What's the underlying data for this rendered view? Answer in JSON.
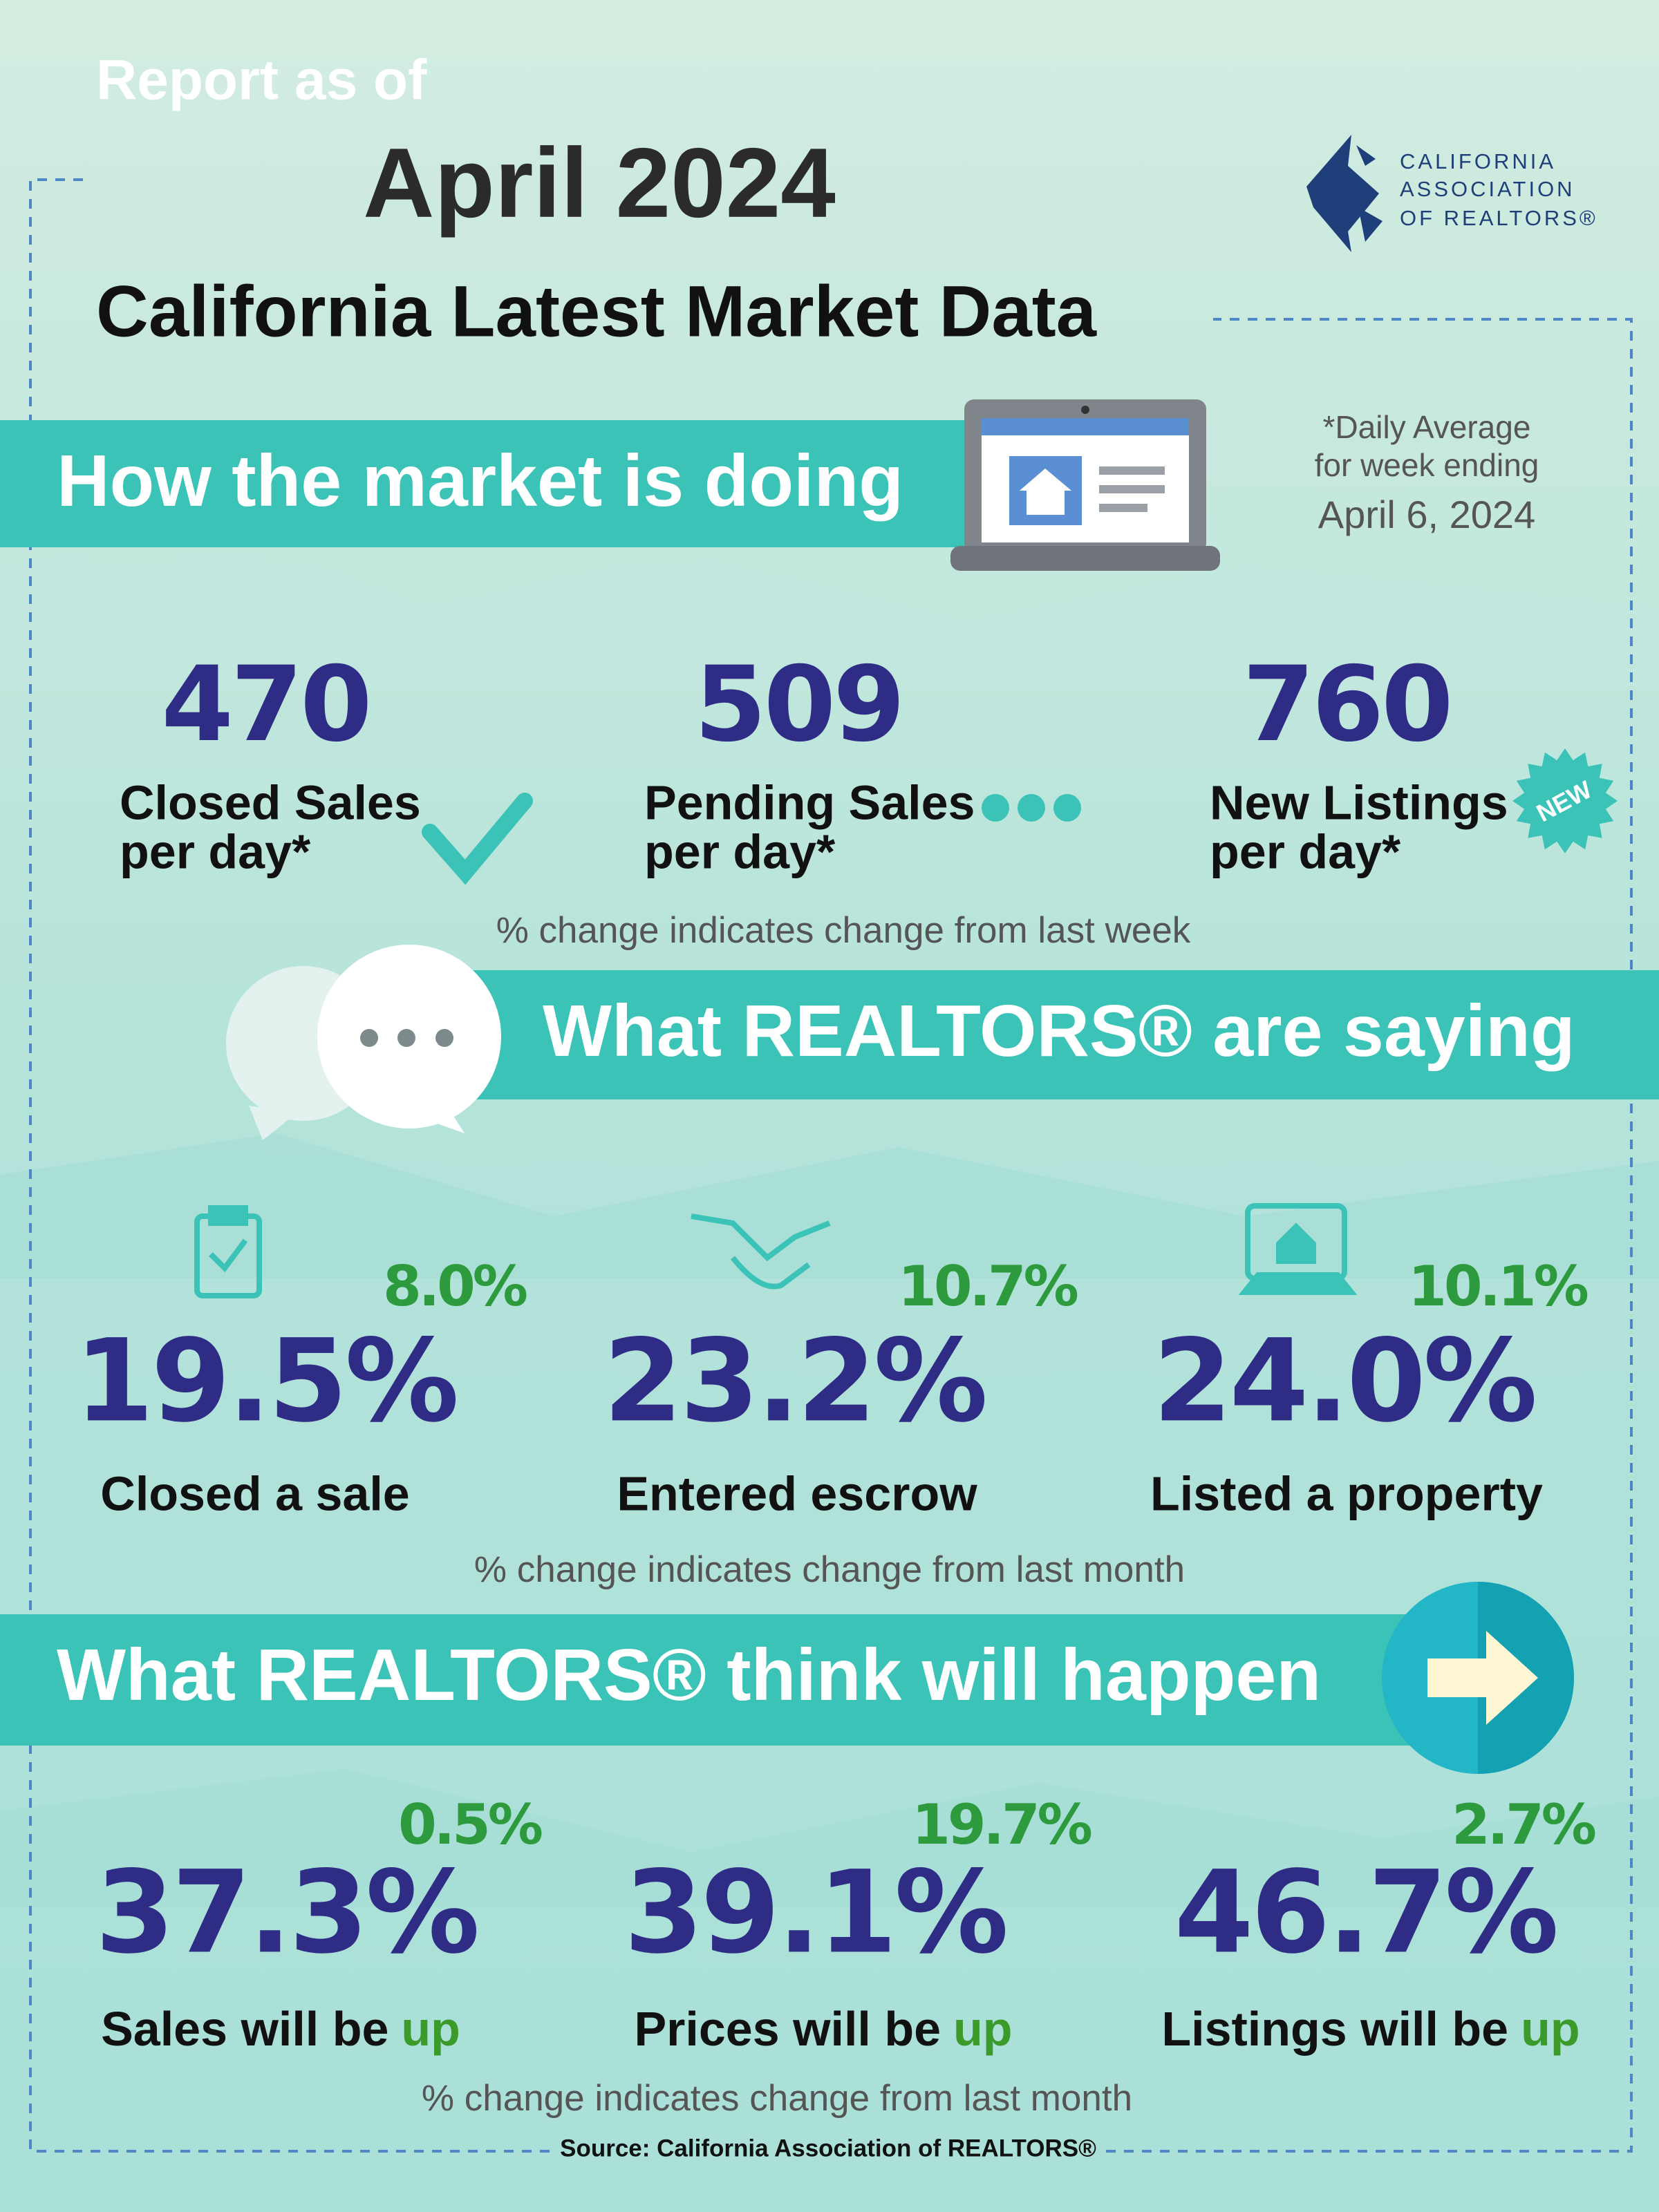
{
  "header": {
    "eyebrow": "Report as of",
    "date": "April 2024",
    "title": "California Latest Market Data"
  },
  "logo": {
    "lines": [
      "CALIFORNIA",
      "ASSOCIATION",
      "OF REALTORS®"
    ]
  },
  "market": {
    "heading": "How the market is doing",
    "note": [
      "*Daily Average",
      "for week ending",
      "April 6, 2024"
    ],
    "stats": [
      {
        "value": "470",
        "label": [
          "Closed Sales",
          "per day*"
        ]
      },
      {
        "value": "509",
        "label": [
          "Pending Sales",
          "per day*"
        ]
      },
      {
        "value": "760",
        "label": [
          "New Listings",
          "per day*"
        ]
      }
    ],
    "badge": "NEW",
    "footnote": "% change indicates change from last week"
  },
  "saying": {
    "heading": "What REALTORS® are saying",
    "stats": [
      {
        "change": "8.0%",
        "value": "19.5%",
        "label": "Closed a sale"
      },
      {
        "change": "10.7%",
        "value": "23.2%",
        "label": "Entered escrow"
      },
      {
        "change": "10.1%",
        "value": "24.0%",
        "label": "Listed a property"
      }
    ],
    "footnote": "% change indicates change from last month"
  },
  "think": {
    "heading": "What REALTORS® think will happen",
    "stats": [
      {
        "change": "0.5%",
        "value": "37.3%",
        "label": "Sales will be",
        "direction": "up"
      },
      {
        "change": "19.7%",
        "value": "39.1%",
        "label": "Prices will be",
        "direction": "up"
      },
      {
        "change": "2.7%",
        "value": "46.7%",
        "label": "Listings will be",
        "direction": "up"
      }
    ],
    "footnote": "% change indicates change from last month"
  },
  "source": "Source: California Association of REALTORS®"
}
